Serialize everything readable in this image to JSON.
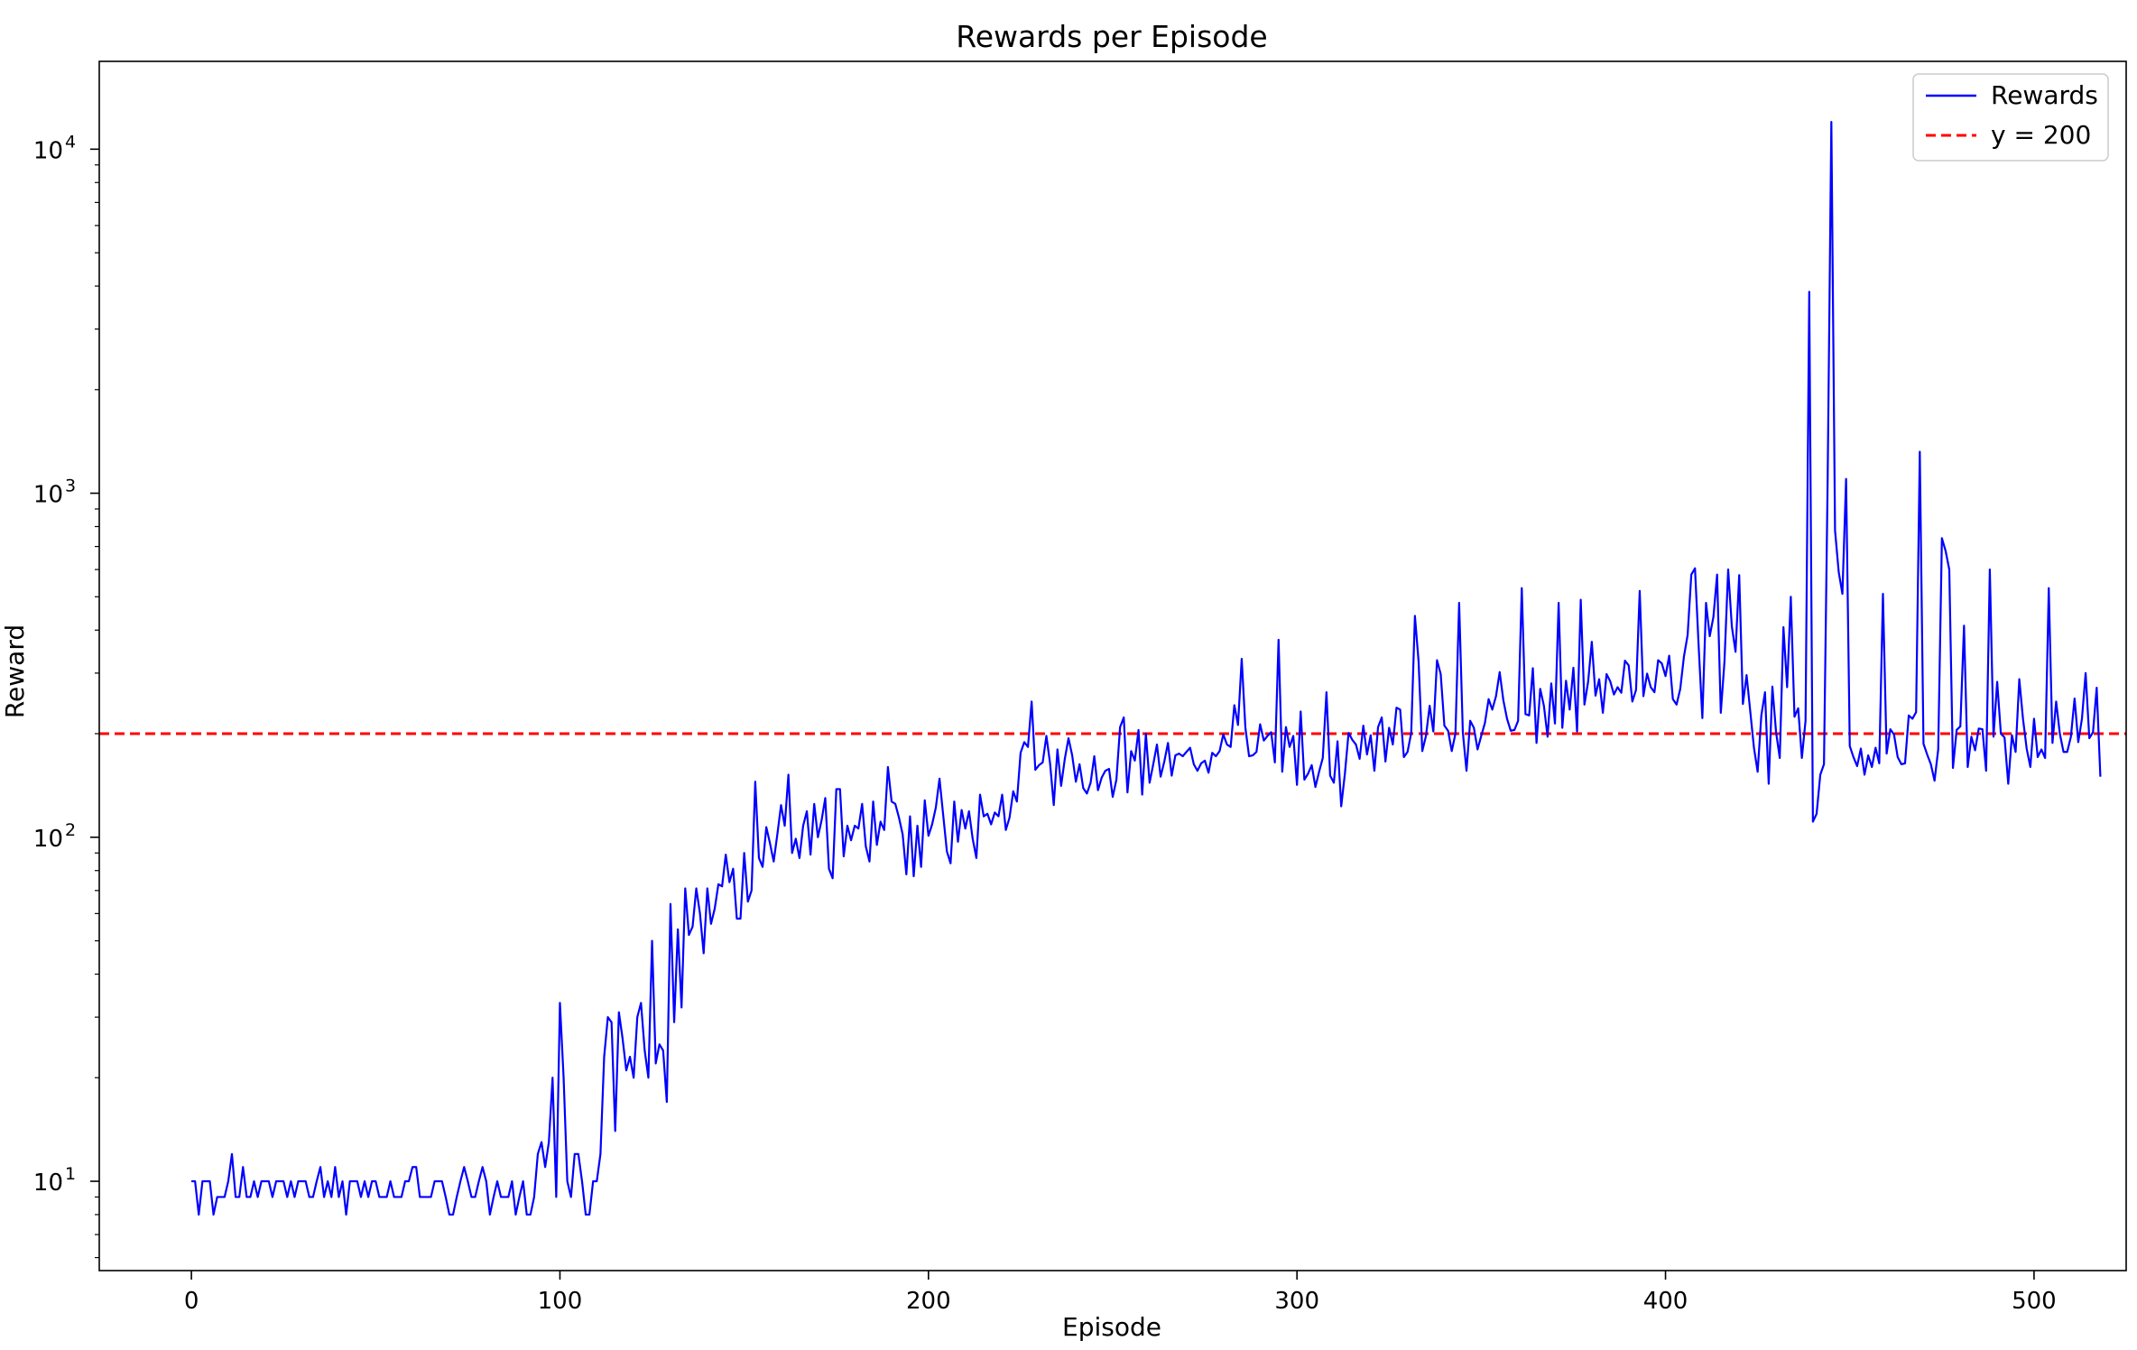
{
  "chart_data": {
    "type": "line",
    "title": "Rewards per Episode",
    "xlabel": "Episode",
    "ylabel": "Reward",
    "yscale": "log",
    "xlim": [
      -25,
      525
    ],
    "ylim": [
      5.5,
      18000
    ],
    "grid": false,
    "legend_position": "top-right",
    "x_ticks": [
      0,
      100,
      200,
      300,
      400,
      500
    ],
    "x_tick_labels": [
      "0",
      "100",
      "200",
      "300",
      "400",
      "500"
    ],
    "y_major_ticks": [
      {
        "value": 10,
        "base": "10",
        "exp": "1"
      },
      {
        "value": 100,
        "base": "10",
        "exp": "2"
      },
      {
        "value": 1000,
        "base": "10",
        "exp": "3"
      },
      {
        "value": 10000,
        "base": "10",
        "exp": "4"
      }
    ],
    "series": [
      {
        "name": "Rewards",
        "color": "#0000ff",
        "style": "solid",
        "x_start": 0,
        "x_step": 1,
        "values": [
          10,
          10,
          8,
          10,
          10,
          10,
          8,
          9,
          9,
          9,
          10,
          12,
          9,
          9,
          11,
          9,
          9,
          10,
          9,
          10,
          10,
          10,
          9,
          10,
          10,
          10,
          9,
          10,
          9,
          10,
          10,
          10,
          9,
          9,
          10,
          11,
          9,
          10,
          9,
          11,
          9,
          10,
          8,
          10,
          10,
          10,
          9,
          10,
          9,
          10,
          10,
          9,
          9,
          9,
          10,
          9,
          9,
          9,
          10,
          10,
          11,
          11,
          9,
          9,
          9,
          9,
          10,
          10,
          10,
          9,
          8,
          8,
          9,
          10,
          11,
          10,
          9,
          9,
          10,
          11,
          10,
          8,
          9,
          10,
          9,
          9,
          9,
          10,
          8,
          9,
          10,
          8,
          8,
          9,
          12,
          13,
          11,
          13,
          20,
          9,
          33,
          20,
          10,
          9,
          12,
          12,
          10,
          8,
          8,
          10,
          10,
          12,
          23,
          30,
          29,
          14,
          31,
          26,
          21,
          23,
          20,
          30,
          33,
          24,
          20,
          50,
          22,
          25,
          24,
          17,
          64,
          29,
          54,
          32,
          71,
          52,
          55,
          71,
          60,
          46,
          71,
          56,
          62,
          73,
          72,
          89,
          74,
          81,
          58,
          58,
          90,
          65,
          70,
          145,
          87,
          82,
          107,
          96,
          85,
          102,
          124,
          108,
          152,
          90,
          99,
          87,
          108,
          119,
          89,
          125,
          100,
          112,
          130,
          81,
          76,
          138,
          138,
          88,
          108,
          98,
          108,
          106,
          125,
          94,
          85,
          127,
          95,
          111,
          105,
          160,
          127,
          125,
          114,
          102,
          78,
          115,
          77,
          108,
          82,
          128,
          101,
          109,
          122,
          148,
          116,
          91,
          84,
          127,
          97,
          120,
          106,
          119,
          99,
          87,
          133,
          115,
          117,
          109,
          118,
          115,
          133,
          105,
          114,
          136,
          127,
          176,
          189,
          183,
          248,
          157,
          162,
          165,
          197,
          164,
          124,
          180,
          141,
          169,
          194,
          173,
          145,
          163,
          139,
          134,
          144,
          172,
          137,
          149,
          156,
          158,
          131,
          147,
          209,
          223,
          135,
          178,
          167,
          205,
          133,
          200,
          144,
          163,
          186,
          150,
          166,
          188,
          151,
          173,
          175,
          172,
          177,
          182,
          163,
          156,
          164,
          167,
          154,
          176,
          172,
          178,
          199,
          186,
          183,
          242,
          212,
          330,
          208,
          172,
          173,
          177,
          213,
          191,
          197,
          202,
          165,
          375,
          155,
          209,
          183,
          197,
          142,
          232,
          147,
          153,
          162,
          140,
          155,
          170,
          264,
          151,
          144,
          190,
          123,
          153,
          201,
          192,
          186,
          169,
          211,
          174,
          198,
          156,
          209,
          223,
          166,
          208,
          186,
          238,
          235,
          171,
          177,
          201,
          440,
          324,
          178,
          197,
          241,
          203,
          327,
          298,
          211,
          204,
          178,
          200,
          480,
          202,
          156,
          218,
          208,
          180,
          197,
          215,
          252,
          235,
          257,
          302,
          250,
          221,
          204,
          205,
          218,
          530,
          228,
          226,
          310,
          188,
          270,
          241,
          196,
          280,
          214,
          480,
          208,
          285,
          235,
          311,
          203,
          490,
          243,
          283,
          370,
          258,
          288,
          230,
          298,
          284,
          260,
          273,
          263,
          326,
          316,
          248,
          268,
          520,
          257,
          299,
          273,
          264,
          327,
          320,
          294,
          337,
          252,
          243,
          270,
          335,
          387,
          580,
          605,
          358,
          222,
          480,
          384,
          437,
          580,
          230,
          324,
          600,
          410,
          346,
          578,
          244,
          296,
          232,
          182,
          155,
          226,
          264,
          143,
          274,
          202,
          170,
          408,
          273,
          500,
          224,
          237,
          170,
          218,
          3850,
          111,
          117,
          152,
          163,
          1100,
          12000,
          780,
          590,
          510,
          1100,
          184,
          171,
          161,
          181,
          152,
          173,
          160,
          182,
          164,
          510,
          175,
          206,
          199,
          171,
          163,
          164,
          226,
          221,
          231,
          1320,
          187,
          174,
          163,
          146,
          180,
          740,
          680,
          600,
          159,
          205,
          210,
          412,
          160,
          196,
          179,
          207,
          206,
          156,
          600,
          196,
          283,
          200,
          195,
          143,
          198,
          177,
          288,
          221,
          181,
          160,
          221,
          171,
          180,
          170,
          530,
          188,
          248,
          200,
          177,
          177,
          196,
          253,
          189,
          221,
          300,
          194,
          202,
          272,
          150
        ]
      },
      {
        "name": "y = 200",
        "color": "#ff0000",
        "style": "dashed",
        "value": 200
      }
    ]
  }
}
